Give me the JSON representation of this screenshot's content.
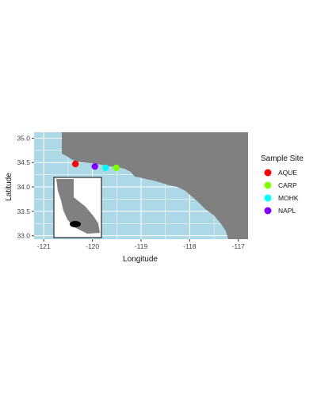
{
  "chart_data": {
    "type": "scatter",
    "title": "",
    "xlabel": "Longitude",
    "ylabel": "Latitude",
    "xlim": [
      -121.2,
      -116.8
    ],
    "ylim": [
      32.93,
      35.12
    ],
    "xticks": [
      {
        "value": -121,
        "label": "-121"
      },
      {
        "value": -120,
        "label": "-120"
      },
      {
        "value": -119,
        "label": "-119"
      },
      {
        "value": -118,
        "label": "-118"
      },
      {
        "value": -117,
        "label": "-117"
      }
    ],
    "yticks": [
      {
        "value": 33.0,
        "label": "33.0"
      },
      {
        "value": 33.5,
        "label": "33.5"
      },
      {
        "value": 34.0,
        "label": "34.0"
      },
      {
        "value": 34.5,
        "label": "34.5"
      },
      {
        "value": 35.0,
        "label": "35.0"
      }
    ],
    "grid": true,
    "legend": {
      "title": "Sample Site",
      "placement": "right"
    },
    "series": [
      {
        "name": "AQUE",
        "color": "#ff0000",
        "x": [
          -120.35
        ],
        "y": [
          34.47
        ]
      },
      {
        "name": "CARP",
        "color": "#80ff00",
        "x": [
          -119.51
        ],
        "y": [
          34.39
        ]
      },
      {
        "name": "MOHK",
        "color": "#00ffff",
        "x": [
          -119.73
        ],
        "y": [
          34.39
        ]
      },
      {
        "name": "NAPL",
        "color": "#8000ff",
        "x": [
          -119.95
        ],
        "y": [
          34.42
        ]
      }
    ],
    "colors": {
      "ocean": "#add8e6",
      "land": "#808080",
      "grid": "#ffffff",
      "inset_background": "#ffffff",
      "inset_state": "#808080",
      "inset_region_marker": "#000000"
    },
    "inset": {
      "description_icon": "california-inset-map-icon"
    }
  }
}
